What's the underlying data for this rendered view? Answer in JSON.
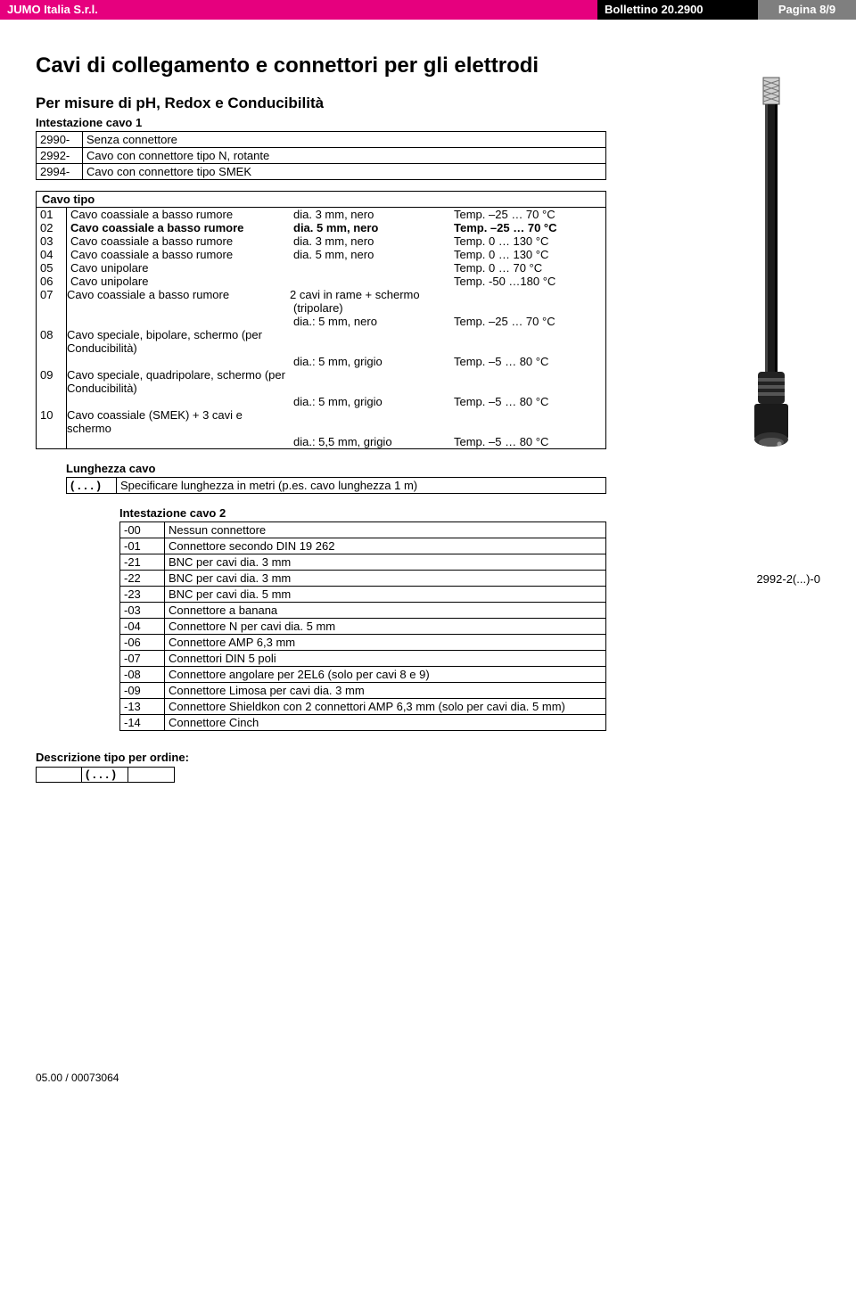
{
  "header": {
    "company": "JUMO Italia S.r.l.",
    "bulletin": "Bollettino 20.2900",
    "page": "Pagina 8/9"
  },
  "title": "Cavi di collegamento e connettori per gli elettrodi",
  "subtitle": "Per misure di pH, Redox e Conducibilità",
  "intest1": {
    "heading": "Intestazione cavo 1",
    "rows": [
      {
        "code": "2990-",
        "label": "Senza connettore"
      },
      {
        "code": "2992-",
        "label": "Cavo con connettore tipo N, rotante"
      },
      {
        "code": "2994-",
        "label": "Cavo con connettore tipo SMEK"
      }
    ]
  },
  "cavotipo": {
    "heading": "Cavo tipo",
    "rows": [
      {
        "n": "01",
        "desc": "Cavo coassiale a basso rumore",
        "spec": "dia. 3 mm, nero",
        "temp": "Temp. –25 … 70 °C",
        "bold": false
      },
      {
        "n": "02",
        "desc": "Cavo coassiale a basso rumore",
        "spec": "dia. 5 mm, nero",
        "temp": "Temp. –25 … 70 °C",
        "bold": true
      },
      {
        "n": "03",
        "desc": "Cavo coassiale a basso rumore",
        "spec": "dia. 3 mm, nero",
        "temp": "Temp.   0 … 130 °C",
        "bold": false
      },
      {
        "n": "04",
        "desc": "Cavo coassiale a basso rumore",
        "spec": "dia. 5 mm, nero",
        "temp": "Temp.   0 … 130 °C",
        "bold": false
      },
      {
        "n": "05",
        "desc": "Cavo unipolare",
        "spec": "",
        "temp": "Temp.   0 …  70 °C",
        "bold": false
      },
      {
        "n": "06",
        "desc": "Cavo unipolare",
        "spec": "",
        "temp": "Temp. -50 …180 °C",
        "bold": false
      }
    ],
    "rows_multi": [
      {
        "n": "07",
        "desc": "Cavo coassiale a basso rumore",
        "spec1": "2 cavi in rame + schermo",
        "spec2": "(tripolare)",
        "spec3": "dia.: 5 mm, nero",
        "temp": "Temp. –25 … 70 °C"
      },
      {
        "n": "08",
        "desc": "Cavo speciale, bipolare, schermo (per Conducibilità)",
        "spec3": "dia.: 5 mm, grigio",
        "temp": "Temp. –5 …   80 °C"
      },
      {
        "n": "09",
        "desc": "Cavo speciale, quadripolare, schermo (per Conducibilità)",
        "spec3": "dia.: 5 mm, grigio",
        "temp": "Temp. –5 …   80 °C"
      },
      {
        "n": "10",
        "desc": "Cavo coassiale (SMEK) + 3 cavi e schermo",
        "spec3": "dia.: 5,5 mm, grigio",
        "temp": "Temp. –5 …   80 °C"
      }
    ]
  },
  "lunghezza": {
    "heading": "Lunghezza cavo",
    "code": "( . . . )",
    "label": "Specificare lunghezza in metri (p.es. cavo lunghezza 1 m)"
  },
  "intest2": {
    "heading": "Intestazione cavo 2",
    "rows": [
      {
        "code": "-00",
        "label": "Nessun connettore"
      },
      {
        "code": "-01",
        "label": "Connettore secondo DIN 19 262"
      },
      {
        "code": "-21",
        "label": "BNC per cavi dia. 3 mm"
      },
      {
        "code": "-22",
        "label": "BNC per cavi dia. 3 mm"
      },
      {
        "code": "-23",
        "label": "BNC per cavi dia. 5 mm"
      },
      {
        "code": "-03",
        "label": "Connettore a banana"
      },
      {
        "code": "-04",
        "label": "Connettore N per cavi dia. 5 mm"
      },
      {
        "code": "-06",
        "label": "Connettore AMP 6,3 mm"
      },
      {
        "code": "-07",
        "label": "Connettori DIN 5 poli"
      },
      {
        "code": "-08",
        "label": "Connettore angolare per 2EL6 (solo per cavi 8 e 9)"
      },
      {
        "code": "-09",
        "label": "Connettore Limosa per cavi dia. 3 mm"
      },
      {
        "code": "-13",
        "label": "Connettore Shieldkon con 2 connettori AMP 6,3 mm (solo per cavi dia. 5 mm)"
      },
      {
        "code": "-14",
        "label": "Connettore Cinch"
      }
    ]
  },
  "descr_ordine": {
    "heading": "Descrizione tipo per ordine:",
    "placeholder": "( . . . )"
  },
  "side_code": "2992-2(...)-0",
  "footer": "05.00 / 00073064"
}
